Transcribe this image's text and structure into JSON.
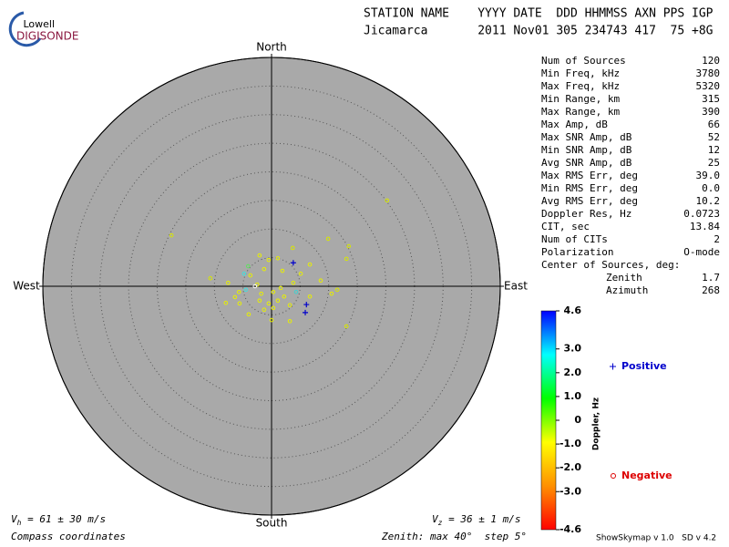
{
  "logo": {
    "top": "Lowell",
    "bottom": "DIGISONDE"
  },
  "header": {
    "labels": "STATION NAME    YYYY DATE  DDD HHMMSS AXN PPS IGP",
    "values": "Jicamarca       2011 Nov01 305 234743 417  75 +8G"
  },
  "stats": [
    [
      "Num of Sources",
      120
    ],
    [
      "Min Freq, kHz",
      3780
    ],
    [
      "Max Freq, kHz",
      5320
    ],
    [
      "Min Range, km",
      315
    ],
    [
      "Max Range, km",
      390
    ],
    [
      "Max Amp, dB",
      66
    ],
    [
      "Max SNR Amp, dB",
      52
    ],
    [
      "Min SNR Amp, dB",
      12
    ],
    [
      "Avg SNR Amp, dB",
      25
    ],
    [
      "Max RMS Err, deg",
      "39.0"
    ],
    [
      "Min RMS Err, deg",
      "0.0"
    ],
    [
      "Avg RMS Err, deg",
      10.2
    ],
    [
      "Doppler Res, Hz",
      0.0723
    ],
    [
      "CIT, sec",
      13.84
    ],
    [
      "Num of CITs",
      2
    ],
    [
      "Polarization",
      "O-mode"
    ]
  ],
  "center": {
    "title": "Center of Sources, deg:",
    "rows": [
      [
        "Zenith",
        1.7
      ],
      [
        "Azimuth",
        268
      ]
    ]
  },
  "footer": {
    "vh": {
      "symbol": "V",
      "sub": "h",
      "text": " = 61 ± 30 m/s"
    },
    "vz": {
      "symbol": "V",
      "sub": "z",
      "text": " = 36 ± 1 m/s"
    },
    "coords": "Compass coordinates",
    "zenith": "Zenith: max 40°  step 5°",
    "version": "ShowSkymap v 1.0   SD v 4.2"
  },
  "chart_data": {
    "type": "polar-scatter",
    "compass": {
      "north": "North",
      "south": "South",
      "west": "West",
      "east": "East"
    },
    "rlim": [
      0,
      40
    ],
    "rticks": [
      5,
      10,
      15,
      20,
      25,
      30,
      35,
      40
    ],
    "series": [
      {
        "name": "Positive",
        "marker": "+",
        "color": "#0000cc",
        "x": [
          3.8,
          6.1,
          5.9
        ],
        "y": [
          4.1,
          -3.2,
          -4.6
        ]
      },
      {
        "name": "Negative",
        "marker": "o",
        "color": "#dd0000",
        "x": [
          20.2,
          -17.5,
          9.9,
          13.5,
          13.1,
          3.7,
          -2.1,
          -0.5,
          1.1,
          -4.1,
          -1.3,
          1.9,
          5.1,
          6.7,
          -10.7,
          -7.6,
          -5.7,
          -6.4,
          -4.5,
          -2.5,
          0.3,
          1.1,
          2.2,
          3.2,
          4.3,
          6.7,
          8.6,
          11.5,
          10.5,
          -8.0,
          -5.6,
          -1.3,
          0,
          3.2,
          13.1,
          -4.0,
          0.3,
          -2.1,
          -3.7,
          -4.8,
          -2.9,
          -1.8,
          -0.5,
          1.6,
          3.8
        ],
        "y": [
          15.0,
          8.9,
          8.3,
          7.0,
          4.8,
          6.7,
          5.4,
          4.6,
          4.9,
          3.5,
          3.0,
          2.7,
          2.2,
          3.8,
          1.4,
          0.6,
          -1.0,
          -1.9,
          -0.6,
          0.3,
          -1.0,
          -2.5,
          -1.8,
          -3.3,
          -1.0,
          -1.8,
          1.0,
          -0.6,
          -1.3,
          -2.9,
          -3.0,
          -4.1,
          -5.9,
          -6.1,
          -7.0,
          -4.9,
          -3.8,
          -2.5,
          1.9,
          2.2,
          0,
          -1.3,
          -3.0,
          -0.3,
          0.6
        ],
        "colors": [
          "#d8e800",
          "#d8e800",
          "#d8e800",
          "#d8e800",
          "#d8e800",
          "#d8e800",
          "#e8f000",
          "#e8f000",
          "#e8f000",
          "#60e060",
          "#e8f000",
          "#e8f000",
          "#e8f000",
          "#e8f000",
          "#d8e800",
          "#e8f000",
          "#e8f000",
          "#e8f000",
          "#40e0e0",
          "#e8f000",
          "#e8f000",
          "#e8f000",
          "#e8f000",
          "#e8f000",
          "#40d0d0",
          "#e8f000",
          "#e8f000",
          "#d8e800",
          "#e8f000",
          "#e8f000",
          "#e8f000",
          "#e8f000",
          "#e8f000",
          "#e8f000",
          "#d8e800",
          "#e8f000",
          "#e8f000",
          "#e8f000",
          "#e8f000",
          "#40e0e0",
          "#ffffff",
          "#e8f000",
          "#e8f000",
          "#e8f000",
          "#e8f000"
        ]
      }
    ],
    "colorbar": {
      "label": "Doppler, Hz",
      "lim": [
        -4.6,
        4.6
      ],
      "ticks": [
        4.6,
        {
          "value": 3,
          "label": "3.0"
        },
        {
          "value": 2,
          "label": "2.0"
        },
        {
          "value": 1,
          "label": "1.0"
        },
        0,
        {
          "value": -1,
          "label": "-1.0"
        },
        {
          "value": -2,
          "label": "-2.0"
        },
        {
          "value": -3,
          "label": "-3.0"
        },
        -4.6
      ],
      "colors": [
        "#ff0000",
        "#ff9000",
        "#ffff00",
        "#00ff00",
        "#00ffff",
        "#0000ff"
      ]
    }
  }
}
